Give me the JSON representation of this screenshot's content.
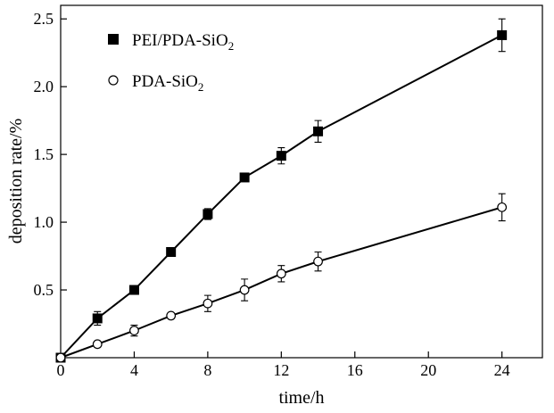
{
  "chart_data": {
    "type": "line",
    "title": "",
    "xlabel": "time/h",
    "ylabel": "deposition rate/%",
    "xlim": [
      0,
      26.2
    ],
    "ylim": [
      0,
      2.6
    ],
    "x_ticks": [
      0,
      4,
      8,
      12,
      16,
      20,
      24
    ],
    "x_tick_labels": [
      "0",
      "4",
      "8",
      "12",
      "16",
      "20",
      "24"
    ],
    "y_ticks": [
      0.5,
      1.0,
      1.5,
      2.0,
      2.5
    ],
    "y_tick_labels": [
      "0.5",
      "1.0",
      "1.5",
      "2.0",
      "2.5"
    ],
    "grid": false,
    "legend_position": "top-left",
    "series": [
      {
        "name": "PEI/PDA-SiO",
        "name_subscript": "2",
        "marker": "filled-square",
        "color": "#000000",
        "x": [
          0,
          2,
          4,
          6,
          8,
          10,
          12,
          14,
          24
        ],
        "y": [
          0.0,
          0.29,
          0.5,
          0.78,
          1.06,
          1.33,
          1.49,
          1.67,
          2.38
        ],
        "err": [
          0,
          0.05,
          0.03,
          0.02,
          0.04,
          0.02,
          0.06,
          0.08,
          0.12
        ]
      },
      {
        "name": "PDA-SiO",
        "name_subscript": "2",
        "marker": "open-circle",
        "color": "#000000",
        "x": [
          0,
          2,
          4,
          6,
          8,
          10,
          12,
          14,
          24
        ],
        "y": [
          0.0,
          0.1,
          0.2,
          0.31,
          0.4,
          0.5,
          0.62,
          0.71,
          1.11
        ],
        "err": [
          0,
          0.02,
          0.04,
          0.02,
          0.06,
          0.08,
          0.06,
          0.07,
          0.1
        ]
      }
    ]
  }
}
